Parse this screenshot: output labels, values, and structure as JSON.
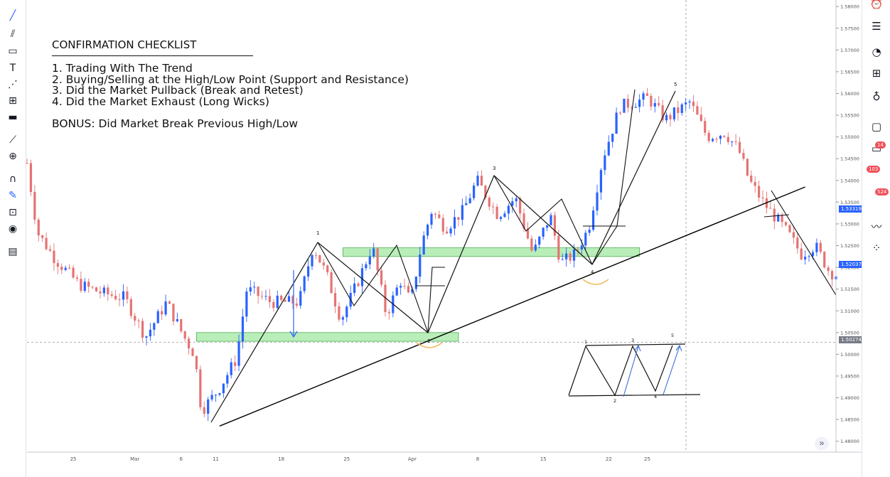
{
  "checklist": {
    "title": "CONFIRMATION CHECKLIST",
    "items": [
      "1. Trading With The Trend",
      "2. Buying/Selling at the High/Low Point (Support and Resistance)",
      "3. Did the Market Pullback (Break and Retest)",
      "4. Did the Market Exhaust (Long Wicks)"
    ],
    "bonus": "BONUS: Did Market Break Previous High/Low"
  },
  "chart_data": {
    "type": "candlestick",
    "y_ticks": [
      "1.58000",
      "1.57500",
      "1.57000",
      "1.56500",
      "1.56000",
      "1.55500",
      "1.55000",
      "1.54500",
      "1.54000",
      "1.53500",
      "1.53000",
      "1.52500",
      "1.52000",
      "1.51500",
      "1.51000",
      "1.50500",
      "1.50000",
      "1.49500",
      "1.49000",
      "1.48500",
      "1.48000"
    ],
    "ylim": [
      1.4775,
      1.5815
    ],
    "x_ticks": [
      {
        "label": "25",
        "index": 12
      },
      {
        "label": "Mar",
        "index": 28
      },
      {
        "label": "6",
        "index": 40
      },
      {
        "label": "11",
        "index": 49
      },
      {
        "label": "18",
        "index": 66
      },
      {
        "label": "25",
        "index": 83
      },
      {
        "label": "Apr",
        "index": 100
      },
      {
        "label": "8",
        "index": 117
      },
      {
        "label": "15",
        "index": 134
      },
      {
        "label": "22",
        "index": 151
      },
      {
        "label": "25",
        "index": 161
      }
    ],
    "current_price_labels": [
      {
        "value": "1.53319",
        "price": 1.53319,
        "color": "#2962ff"
      },
      {
        "value": "1.52037",
        "price": 1.52037,
        "color": "#2962ff"
      },
      {
        "value": "1.50274",
        "price": 1.50274,
        "color": "#787b86"
      }
    ],
    "swing_labels": [
      "1",
      "2",
      "3",
      "4",
      "5"
    ],
    "mini_pattern_labels": [
      "1",
      "2",
      "3",
      "4",
      "5"
    ],
    "zones": [
      {
        "name": "support-zone-low",
        "from_index": 44,
        "to_index": 112,
        "top": 1.505,
        "bottom": 1.503
      },
      {
        "name": "support-zone-mid",
        "from_index": 82,
        "to_index": 159,
        "top": 1.5245,
        "bottom": 1.5225
      }
    ],
    "trendline": {
      "from": {
        "index": 50,
        "price": 1.4835
      },
      "to": {
        "index": 202,
        "price": 1.5385
      }
    },
    "colors": {
      "up": "#2962ff",
      "down": "#e57373",
      "zone": "#9be79b",
      "zone_border": "#4caf50",
      "line": "#000000",
      "support_arc": "#f2b95b"
    }
  },
  "toolbar": {
    "left_icons": [
      "cursor-icon",
      "trendline-icon",
      "fib-icon",
      "rectangle-icon",
      "text-icon",
      "pattern-icon",
      "forecast-icon",
      "brush-icon",
      "ruler-icon",
      "zoom-icon",
      "magnet-icon",
      "lock-drawings-icon",
      "lock-icon",
      "eye-icon",
      "trash-icon"
    ],
    "right_icons": [
      "alarm-icon",
      "watchlist-icon",
      "alerts-icon",
      "data-window-icon",
      "hotlist-icon",
      "ideas-icon",
      "chat-icon",
      "streams-icon",
      "calendar-icon",
      "notification-icon",
      "ticker-icon",
      "dots-icon"
    ],
    "badges": [
      "14",
      "103",
      "524"
    ],
    "scroll_button": "»"
  }
}
